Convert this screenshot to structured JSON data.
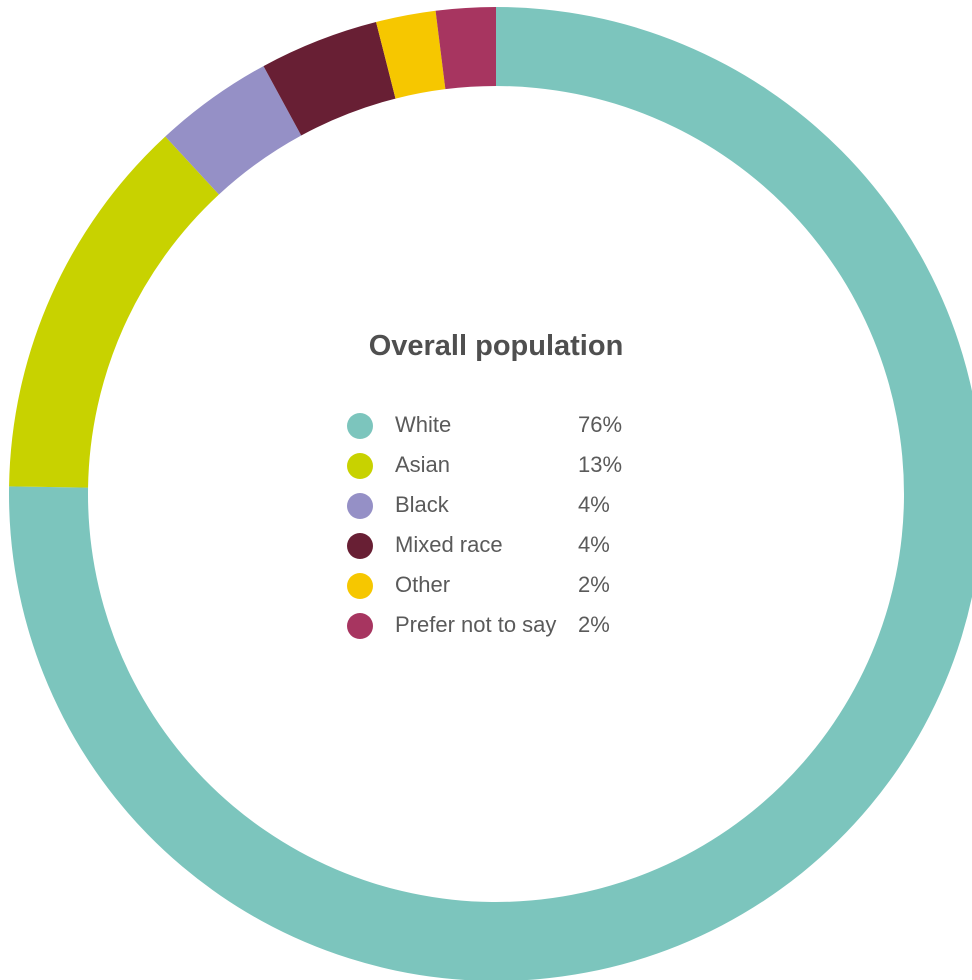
{
  "chart_data": {
    "type": "pie",
    "variant": "donut",
    "title": "Overall population",
    "categories": [
      "White",
      "Asian",
      "Black",
      "Mixed race",
      "Other",
      "Prefer not to say"
    ],
    "values": [
      76,
      13,
      4,
      4,
      2,
      2
    ],
    "value_labels": [
      "76%",
      "13%",
      "4%",
      "4%",
      "2%",
      "2%"
    ],
    "colors": [
      "#7cc5bd",
      "#c8d200",
      "#9590c6",
      "#681f34",
      "#f6c700",
      "#a73560"
    ],
    "legend": "center"
  }
}
